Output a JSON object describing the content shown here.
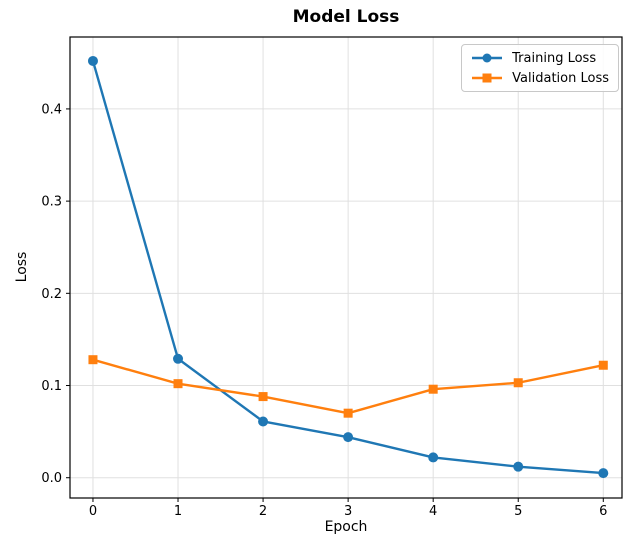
{
  "chart_data": {
    "type": "line",
    "title": "Model Loss",
    "xlabel": "Epoch",
    "ylabel": "Loss",
    "x": [
      0,
      1,
      2,
      3,
      4,
      5,
      6
    ],
    "series": [
      {
        "name": "Training Loss",
        "color": "#1f77b4",
        "marker": "circle",
        "values": [
          0.452,
          0.129,
          0.061,
          0.044,
          0.022,
          0.012,
          0.005
        ]
      },
      {
        "name": "Validation Loss",
        "color": "#ff7f0e",
        "marker": "square",
        "values": [
          0.128,
          0.102,
          0.088,
          0.07,
          0.096,
          0.103,
          0.122
        ]
      }
    ],
    "xticks": {
      "values": [
        0,
        1,
        2,
        3,
        4,
        5,
        6
      ],
      "labels": [
        "0",
        "1",
        "2",
        "3",
        "4",
        "5",
        "6"
      ]
    },
    "yticks": {
      "values": [
        0.0,
        0.1,
        0.2,
        0.3,
        0.4
      ],
      "labels": [
        "0.0",
        "0.1",
        "0.2",
        "0.3",
        "0.4"
      ]
    },
    "xlim": [
      -0.27,
      6.22
    ],
    "ylim": [
      -0.022,
      0.478
    ],
    "grid": true,
    "grid_color": "#e0e0e0",
    "axis_color": "#000000",
    "legend_position": "upper right"
  }
}
